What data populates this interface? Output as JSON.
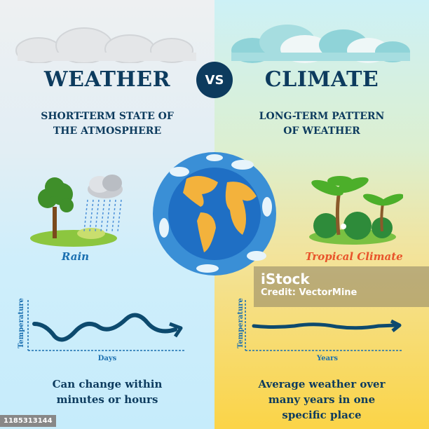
{
  "left": {
    "title": "WEATHER",
    "subtitle_line1": "SHORT-TERM STATE OF",
    "subtitle_line2": "THE ATMOSPHERE",
    "example_label": "Rain",
    "chart": {
      "ylabel": "Temperature",
      "xlabel": "Days"
    },
    "summary_line1": "Can change within",
    "summary_line2": "minutes or hours"
  },
  "vs": "VS",
  "right": {
    "title": "CLIMATE",
    "subtitle_line1": "LONG-TERM PATTERN",
    "subtitle_line2": "OF WEATHER",
    "example_label": "Tropical Climate",
    "chart": {
      "ylabel": "Temperature",
      "xlabel": "Years"
    },
    "summary_line1": "Average weather over",
    "summary_line2": "many years in one",
    "summary_line3": "specific place"
  },
  "watermark": {
    "brand": "iStock",
    "credit": "Credit: VectorMine"
  },
  "image_id": "1185313144",
  "colors": {
    "navy": "#0d3b5e",
    "blue_label": "#1a6fb0",
    "orange_label": "#e8532a",
    "yellow": "#fbd447"
  }
}
